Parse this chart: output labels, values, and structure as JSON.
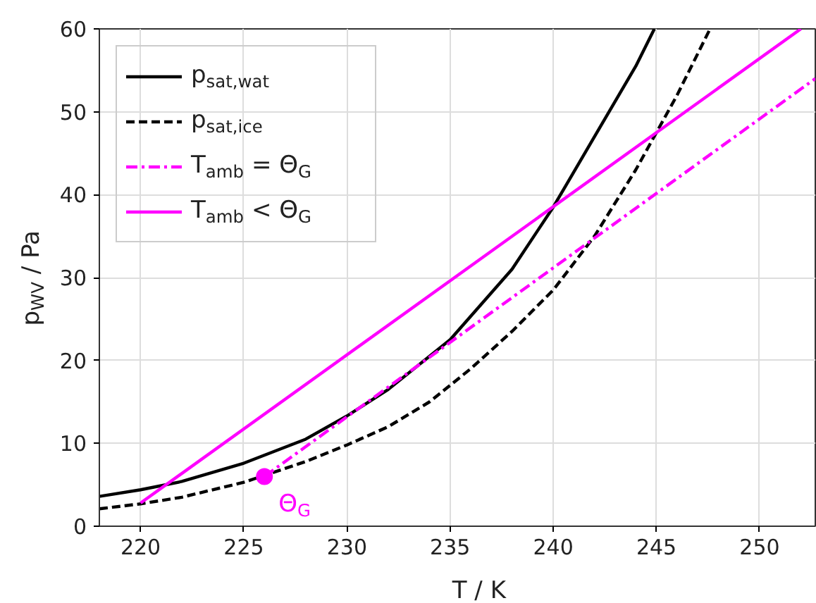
{
  "chart_data": {
    "type": "line",
    "xlabel": "T / K",
    "ylabel": "p$_{WV}$ / Pa",
    "xlim": [
      218,
      252.7
    ],
    "ylim": [
      0,
      60
    ],
    "xticks": [
      220,
      225,
      230,
      235,
      240,
      245,
      250
    ],
    "yticks": [
      0,
      10,
      20,
      30,
      40,
      50,
      60
    ],
    "grid": true,
    "legend": "top left",
    "marker": "none",
    "series": [
      {
        "name": "p$_{sat,wat}$",
        "color": "#000000",
        "line_style": "solid",
        "x": [
          218,
          220,
          222,
          225,
          228,
          230,
          232,
          235,
          238,
          240,
          242,
          244,
          244.9
        ],
        "values": [
          3.6,
          4.4,
          5.4,
          7.6,
          10.5,
          13.3,
          16.5,
          22.5,
          31,
          38.5,
          47,
          55.5,
          60
        ]
      },
      {
        "name": "p$_{sat,ice}$",
        "color": "#000000",
        "line_style": "dashed",
        "x": [
          218,
          220,
          222,
          225,
          228,
          230,
          232,
          234,
          236,
          238,
          240,
          242,
          244,
          246,
          247.6
        ],
        "values": [
          2.1,
          2.7,
          3.5,
          5.3,
          7.8,
          9.8,
          12,
          15,
          19,
          23.5,
          28.5,
          35,
          43,
          52,
          60
        ]
      },
      {
        "name": "T$_{amb}$ = Θ$_{G}$",
        "color": "#ff00ff",
        "line_style": "dashdot",
        "x": [
          226,
          252.7
        ],
        "values": [
          6,
          54
        ]
      },
      {
        "name": "T$_{amb}$ < Θ$_{G}$",
        "color": "#ff00ff",
        "line_style": "solid",
        "x": [
          220,
          252
        ],
        "values": [
          2.8,
          60
        ]
      },
      {
        "type": "scatter",
        "marker": "circle",
        "color": "#ff00ff",
        "x": [
          226
        ],
        "values": [
          6
        ]
      }
    ],
    "annotations": [
      {
        "text": "Θ$_{G}$",
        "x": 226,
        "y": 6
      }
    ]
  }
}
